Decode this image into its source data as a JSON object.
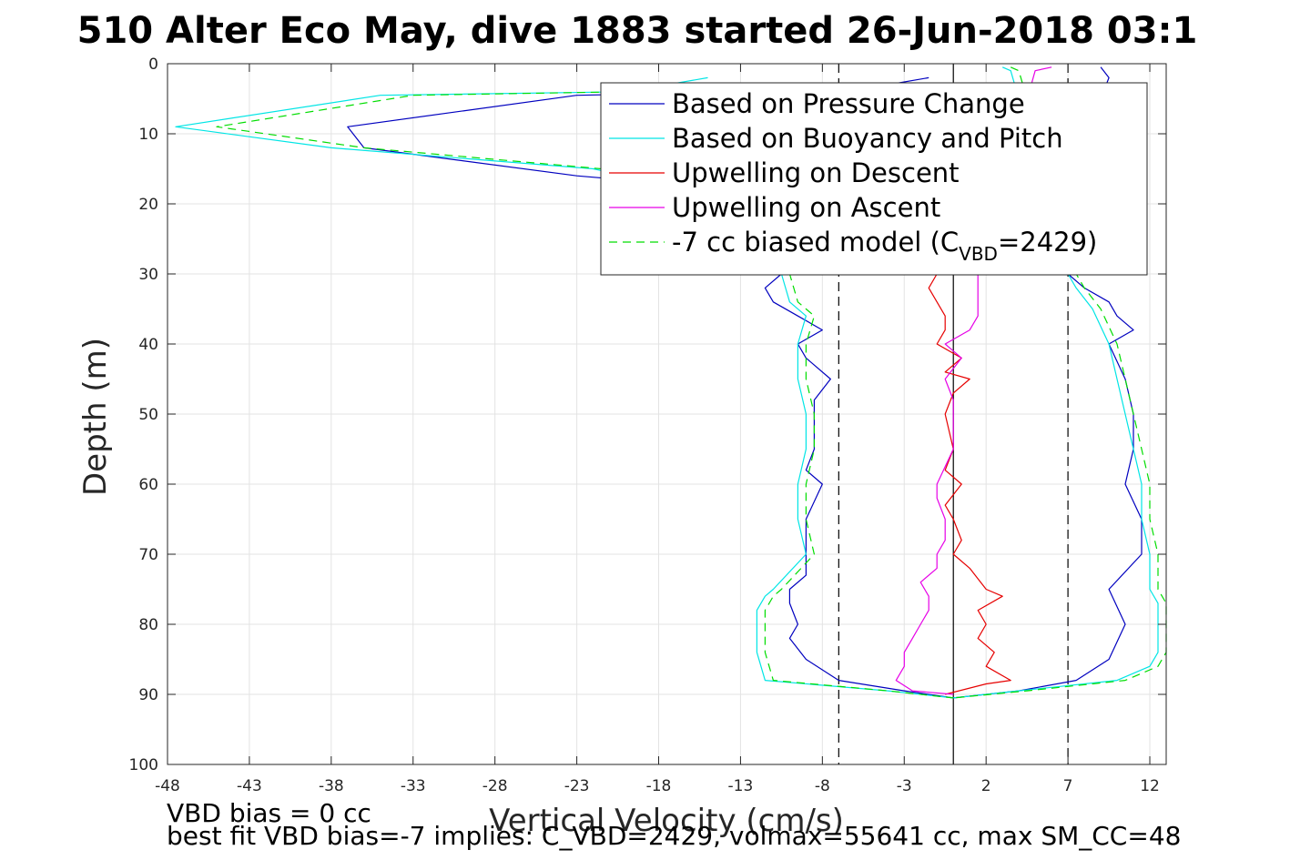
{
  "chart_data": {
    "type": "line",
    "title": "510 Alter Eco May, dive 1883 started 26-Jun-2018 03:1",
    "xlabel": "Vertical Velocity (cm/s)",
    "ylabel": "Depth (m)",
    "xlim": [
      -48,
      13
    ],
    "ylim": [
      0,
      100
    ],
    "y_reversed": true,
    "grid": true,
    "xticks": [
      -48,
      -43,
      -38,
      -33,
      -28,
      -23,
      -18,
      -13,
      -8,
      -3,
      2,
      7,
      12
    ],
    "yticks": [
      0,
      10,
      20,
      30,
      40,
      50,
      60,
      70,
      80,
      90,
      100
    ],
    "legend_position": "top-right",
    "legend": [
      {
        "text": "Based on Pressure Change",
        "color": "#0000bf",
        "dash": false
      },
      {
        "text": "Based on Buoyancy and Pitch",
        "color": "#00e5e5",
        "dash": false
      },
      {
        "text": "Upwelling on Descent",
        "color": "#e60000",
        "dash": false
      },
      {
        "text": "Upwelling on Ascent",
        "color": "#e600e6",
        "dash": false
      },
      {
        "text_main": "-7 cc biased model (C",
        "text_sub": "VBD",
        "text_tail": "=2429)",
        "color": "#00dd00",
        "dash": true
      }
    ],
    "reference_lines": [
      {
        "x": -7,
        "style": "dashed",
        "color": "#000000"
      },
      {
        "x": 0,
        "style": "solid",
        "color": "#000000"
      },
      {
        "x": 7,
        "style": "dashed",
        "color": "#000000"
      }
    ],
    "series": [
      {
        "name": "Based on Pressure Change",
        "color": "#0000bf",
        "branches": [
          {
            "depth": [
              2,
              3,
              4,
              4.5,
              9,
              12,
              16,
              17,
              20,
              24,
              27,
              30,
              32,
              34,
              36,
              38,
              40,
              42,
              45,
              48,
              50,
              55,
              58,
              60,
              65,
              70,
              73,
              75,
              77,
              80,
              82,
              85,
              88,
              89.5,
              90.5
            ],
            "vel": [
              -1.5,
              -4,
              -12,
              -23,
              -37,
              -36,
              -23,
              -18,
              -12,
              -11,
              -11,
              -10.5,
              -11.5,
              -11,
              -9.5,
              -8,
              -9.5,
              -9,
              -7.5,
              -8.5,
              -8.5,
              -8.5,
              -9,
              -8,
              -9,
              -9,
              -9,
              -10,
              -10,
              -9.5,
              -10,
              -9,
              -7,
              -3,
              0
            ]
          },
          {
            "depth": [
              0.5,
              2,
              5,
              10,
              15,
              20,
              25,
              30,
              32,
              34,
              36,
              38,
              40,
              45,
              50,
              55,
              60,
              65,
              70,
              75,
              80,
              85,
              88,
              89.5,
              90.5
            ],
            "vel": [
              9,
              9.5,
              9,
              8,
              7.5,
              8,
              7,
              7,
              8,
              9.5,
              10,
              11,
              9.5,
              10.5,
              11,
              11,
              10.5,
              11.5,
              11.5,
              9.5,
              10.5,
              9.5,
              7.5,
              4,
              0
            ]
          }
        ]
      },
      {
        "name": "Based on Buoyancy and Pitch",
        "color": "#00e5e5",
        "branches": [
          {
            "depth": [
              2,
              4,
              4.5,
              9,
              12,
              15,
              17,
              20,
              25,
              30,
              34,
              36,
              40,
              45,
              50,
              55,
              60,
              65,
              70,
              75,
              76,
              78,
              80,
              84,
              88,
              89.5,
              90.5
            ],
            "vel": [
              -15,
              -20,
              -35,
              -47.5,
              -38,
              -22,
              -18,
              -14,
              -12,
              -10.5,
              -10,
              -9,
              -9.5,
              -9.5,
              -9,
              -9,
              -9.5,
              -9.5,
              -9,
              -11,
              -11.5,
              -12,
              -12,
              -12,
              -11.5,
              -4,
              0
            ]
          },
          {
            "depth": [
              0.5,
              1,
              5,
              10,
              15,
              20,
              25,
              30,
              32,
              35,
              40,
              45,
              50,
              55,
              60,
              65,
              70,
              75,
              77,
              80,
              84,
              86,
              88,
              89.5,
              90.5
            ],
            "vel": [
              3,
              3.5,
              4,
              5,
              6,
              6.5,
              7,
              7,
              7.5,
              8.5,
              9.5,
              10,
              10.5,
              11,
              11.5,
              11.5,
              12,
              12,
              12.5,
              12.5,
              12.5,
              12,
              10,
              4,
              0
            ]
          }
        ]
      },
      {
        "name": "Upwelling on Descent",
        "color": "#e60000",
        "branches": [
          {
            "depth": [
              30,
              32,
              34,
              36,
              38,
              40,
              42,
              44,
              45,
              47,
              50,
              55,
              58,
              60,
              63,
              65,
              68,
              70,
              72,
              75,
              76,
              78,
              80,
              82,
              84,
              86,
              88,
              88.5,
              90
            ],
            "vel": [
              -1,
              -1.5,
              -1,
              -0.5,
              -0.5,
              -1,
              0.5,
              -0.5,
              1,
              0,
              -0.5,
              0,
              -0.5,
              0.5,
              -0.5,
              0,
              0.5,
              0,
              1,
              2,
              3,
              1.5,
              2,
              1.5,
              2.5,
              2,
              3.5,
              2,
              -0.5
            ]
          }
        ]
      },
      {
        "name": "Upwelling on Ascent",
        "color": "#e600e6",
        "branches": [
          {
            "depth": [
              0.5,
              1,
              30,
              32,
              34,
              36,
              38,
              40,
              42,
              45,
              48,
              50,
              55,
              60,
              62,
              65,
              68,
              70,
              72,
              74,
              76,
              78,
              80,
              82,
              84,
              86,
              88,
              89.5,
              90
            ],
            "vel": [
              6,
              5,
              1.5,
              1.5,
              1.5,
              1.5,
              1,
              -0.5,
              0.5,
              -0.5,
              0,
              0,
              0,
              -1,
              -1,
              -0.5,
              -0.5,
              -1,
              -1,
              -2,
              -1.5,
              -1.5,
              -2,
              -2.5,
              -3,
              -3,
              -3.5,
              -2.5,
              0
            ]
          }
        ]
      },
      {
        "name": "-7 cc biased model (CVBD=2429)",
        "color": "#00dd00",
        "dash": true,
        "branches": [
          {
            "depth": [
              3,
              4,
              4.5,
              9,
              12,
              15,
              17,
              20,
              25,
              30,
              34,
              36,
              40,
              45,
              50,
              55,
              60,
              65,
              70,
              75,
              76,
              78,
              80,
              84,
              88,
              89.5,
              90.5
            ],
            "vel": [
              -15,
              -20,
              -33,
              -45,
              -36,
              -21.5,
              -17.5,
              -13.5,
              -11.5,
              -10,
              -9.5,
              -8.5,
              -9,
              -9,
              -8.5,
              -8.5,
              -9,
              -9,
              -8.5,
              -10.5,
              -11,
              -11.5,
              -11.5,
              -11.5,
              -11,
              -4,
              0
            ]
          },
          {
            "depth": [
              0.5,
              1,
              5,
              10,
              15,
              20,
              25,
              30,
              32,
              35,
              40,
              45,
              50,
              55,
              60,
              65,
              70,
              75,
              77,
              80,
              84,
              86,
              88,
              89.5,
              90.5
            ],
            "vel": [
              3.5,
              4,
              4.5,
              5.5,
              6.5,
              7,
              7.5,
              7.5,
              8,
              9,
              10,
              10.5,
              11,
              11.5,
              12,
              12,
              12.5,
              12.5,
              13,
              13,
              13,
              12.5,
              10.5,
              4.5,
              0
            ]
          }
        ]
      }
    ]
  },
  "notes": {
    "line1": "VBD bias = 0 cc",
    "line2": "best fit VBD bias=-7 implies: C_VBD=2429, volmax=55641 cc, max SM_CC=48"
  }
}
